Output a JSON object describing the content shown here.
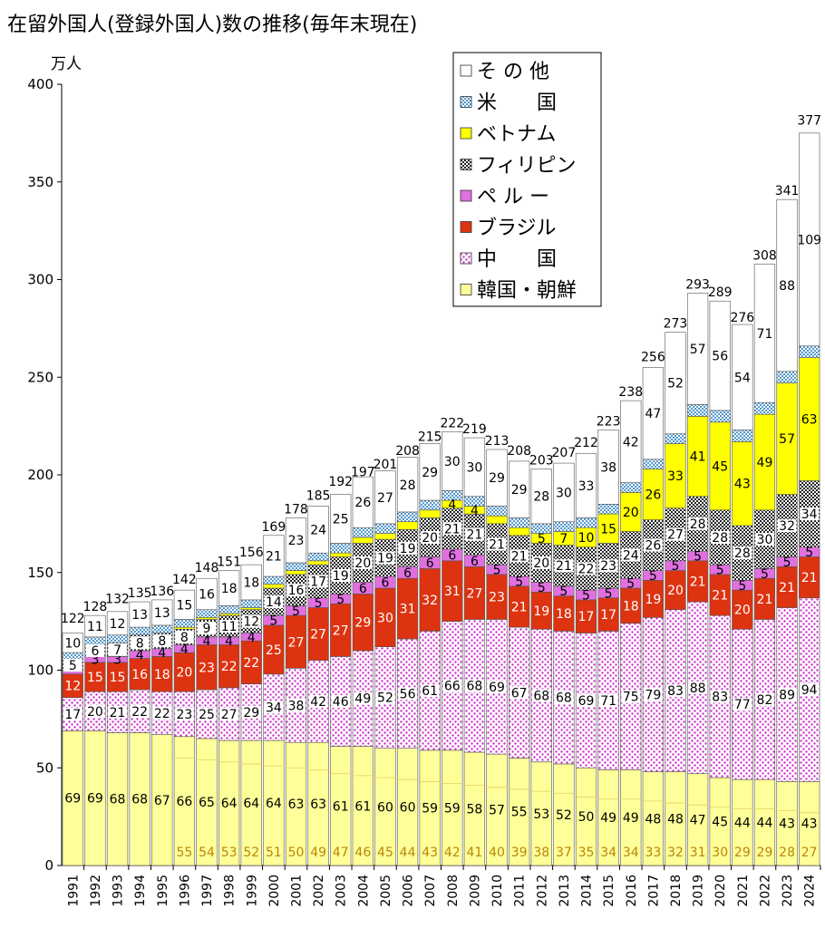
{
  "chart_data": {
    "type": "bar",
    "stacked": true,
    "title": "在留外国人(登録外国人)数の推移(毎年末現在)",
    "unit_label": "万人",
    "ylim": [
      0,
      400
    ],
    "yticks": [
      0,
      50,
      100,
      150,
      200,
      250,
      300,
      350,
      400
    ],
    "grid": false,
    "legend_position": "top-right",
    "categories": [
      "1991",
      "1992",
      "1993",
      "1994",
      "1995",
      "1996",
      "1997",
      "1998",
      "1999",
      "2000",
      "2001",
      "2002",
      "2003",
      "2004",
      "2005",
      "2006",
      "2007",
      "2008",
      "2009",
      "2010",
      "2011",
      "2012",
      "2013",
      "2014",
      "2015",
      "2016",
      "2017",
      "2018",
      "2019",
      "2020",
      "2021",
      "2022",
      "2023",
      "2024"
    ],
    "totals": [
      122,
      128,
      132,
      135,
      136,
      142,
      148,
      151,
      156,
      169,
      178,
      185,
      192,
      197,
      201,
      208,
      215,
      222,
      219,
      213,
      208,
      203,
      207,
      212,
      223,
      238,
      256,
      273,
      293,
      289,
      276,
      308,
      341,
      377
    ],
    "series": [
      {
        "name": "韓国・朝鮮",
        "color": "#ffff99",
        "pattern": "plain",
        "values": [
          69,
          69,
          68,
          68,
          67,
          66,
          65,
          64,
          64,
          64,
          63,
          63,
          61,
          61,
          60,
          60,
          59,
          59,
          58,
          57,
          55,
          53,
          52,
          50,
          49,
          49,
          48,
          48,
          47,
          45,
          44,
          44,
          43,
          43
        ],
        "sub_values": [
          null,
          null,
          null,
          null,
          null,
          55,
          54,
          53,
          52,
          51,
          50,
          49,
          47,
          46,
          45,
          44,
          43,
          42,
          41,
          40,
          39,
          38,
          37,
          35,
          34,
          34,
          33,
          32,
          31,
          30,
          29,
          29,
          28,
          27
        ],
        "sub_labels": [
          "",
          "",
          "",
          "",
          "",
          "55",
          "54",
          "53",
          "52",
          "51",
          "50",
          "49",
          "47",
          "46",
          "45",
          "44",
          "43",
          "42",
          "41",
          "40",
          "39",
          "38",
          "37",
          "35",
          "34",
          "34",
          "33",
          "32",
          "31",
          "30",
          "29",
          "29",
          "28",
          "27"
        ],
        "labels": [
          "69",
          "69",
          "68",
          "68",
          "67",
          "66",
          "65",
          "64",
          "64",
          "64",
          "63",
          "63",
          "61",
          "61",
          "60",
          "60",
          "59",
          "59",
          "58",
          "57",
          "55",
          "53",
          "52",
          "50",
          "49",
          "49",
          "48",
          "48",
          "47",
          "45",
          "44",
          "44",
          "43",
          "43"
        ]
      },
      {
        "name": "中　　国",
        "color": "#cc44cc",
        "pattern": "dots",
        "values": [
          17,
          20,
          21,
          22,
          22,
          23,
          25,
          27,
          29,
          34,
          38,
          42,
          46,
          49,
          52,
          56,
          61,
          66,
          68,
          69,
          67,
          68,
          68,
          69,
          71,
          75,
          79,
          83,
          88,
          83,
          77,
          82,
          89,
          94
        ],
        "labels": [
          "17",
          "20",
          "21",
          "22",
          "22",
          "23",
          "25",
          "27",
          "29",
          "34",
          "38",
          "42",
          "46",
          "49",
          "52",
          "56",
          "61",
          "66",
          "68",
          "69",
          "67",
          "68",
          "68",
          "69",
          "71",
          "75",
          "79",
          "83",
          "88",
          "83",
          "77",
          "82",
          "89",
          "94"
        ]
      },
      {
        "name": "ブラジル",
        "color": "#dd3311",
        "pattern": "plain",
        "values": [
          12,
          15,
          15,
          16,
          18,
          20,
          23,
          22,
          22,
          25,
          27,
          27,
          27,
          29,
          30,
          31,
          32,
          31,
          27,
          23,
          21,
          19,
          18,
          17,
          17,
          18,
          19,
          20,
          21,
          21,
          20,
          21,
          21,
          21
        ],
        "labels": [
          "12",
          "15",
          "15",
          "16",
          "18",
          "20",
          "23",
          "22",
          "22",
          "25",
          "27",
          "27",
          "27",
          "29",
          "30",
          "31",
          "32",
          "31",
          "27",
          "23",
          "21",
          "19",
          "18",
          "17",
          "17",
          "18",
          "19",
          "20",
          "21",
          "21",
          "20",
          "21",
          "21",
          "21"
        ]
      },
      {
        "name": "ペ ル ー",
        "color": "#e070e0",
        "pattern": "plain",
        "values": [
          2,
          3,
          3,
          4,
          4,
          4,
          4,
          4,
          4,
          5,
          5,
          5,
          5,
          6,
          6,
          6,
          6,
          6,
          6,
          5,
          5,
          5,
          5,
          5,
          5,
          5,
          5,
          5,
          5,
          5,
          5,
          5,
          5,
          5
        ],
        "labels": [
          "",
          "3",
          "3",
          "4",
          "4",
          "4",
          "4",
          "4",
          "4",
          "5",
          "5",
          "5",
          "5",
          "6",
          "6",
          "6",
          "6",
          "6",
          "6",
          "5",
          "5",
          "5",
          "5",
          "5",
          "5",
          "5",
          "5",
          "5",
          "5",
          "5",
          "5",
          "5",
          "5",
          "5"
        ]
      },
      {
        "name": "フィリピン",
        "color": "#222222",
        "pattern": "checker",
        "values": [
          5,
          6,
          7,
          8,
          8,
          8,
          9,
          11,
          12,
          14,
          16,
          17,
          19,
          20,
          19,
          19,
          20,
          21,
          21,
          21,
          21,
          20,
          21,
          22,
          23,
          24,
          26,
          27,
          28,
          28,
          28,
          30,
          32,
          34
        ],
        "labels": [
          "5",
          "6",
          "7",
          "8",
          "8",
          "8",
          "9",
          "11",
          "12",
          "14",
          "16",
          "17",
          "19",
          "20",
          "19",
          "19",
          "20",
          "21",
          "21",
          "21",
          "21",
          "20",
          "21",
          "22",
          "23",
          "24",
          "26",
          "27",
          "28",
          "28",
          "28",
          "30",
          "32",
          "34"
        ]
      },
      {
        "name": "ベトナム",
        "color": "#ffff00",
        "pattern": "plain",
        "values": [
          0,
          0,
          0,
          0,
          0,
          1,
          1,
          1,
          1,
          2,
          2,
          2,
          2,
          3,
          3,
          4,
          4,
          4,
          4,
          4,
          4,
          5,
          7,
          10,
          15,
          20,
          26,
          33,
          41,
          45,
          43,
          49,
          57,
          63
        ],
        "labels": [
          "",
          "",
          "",
          "",
          "",
          "",
          "",
          "",
          "",
          "",
          "",
          "",
          "",
          "",
          "",
          "",
          "",
          "4",
          "4",
          "",
          "",
          "5",
          "7",
          "10",
          "15",
          "20",
          "26",
          "33",
          "41",
          "45",
          "43",
          "49",
          "57",
          "63"
        ]
      },
      {
        "name": "米　　国",
        "color": "#99ccee",
        "pattern": "hatch",
        "values": [
          4,
          4,
          4,
          4,
          4,
          4,
          4,
          4,
          4,
          4,
          4,
          4,
          5,
          5,
          5,
          5,
          5,
          5,
          5,
          5,
          5,
          5,
          5,
          5,
          5,
          5,
          5,
          5,
          6,
          6,
          6,
          6,
          6,
          6
        ],
        "labels": [
          "",
          "",
          "",
          "",
          "",
          "",
          "",
          "",
          "",
          "",
          "",
          "",
          "",
          "",
          "",
          "",
          "",
          "",
          "",
          "",
          "",
          "",
          "",
          "",
          "",
          "",
          "",
          "",
          "",
          "",
          "",
          "",
          "",
          ""
        ]
      },
      {
        "name": "そ の 他",
        "color": "#ffffff",
        "pattern": "plain",
        "values": [
          10,
          11,
          12,
          13,
          13,
          15,
          16,
          18,
          18,
          21,
          23,
          24,
          25,
          26,
          27,
          28,
          29,
          30,
          30,
          29,
          29,
          28,
          30,
          33,
          38,
          42,
          47,
          52,
          57,
          56,
          54,
          71,
          88,
          109
        ],
        "labels": [
          "10",
          "11",
          "12",
          "13",
          "13",
          "15",
          "16",
          "18",
          "18",
          "21",
          "23",
          "24",
          "25",
          "26",
          "27",
          "28",
          "29",
          "30",
          "30",
          "29",
          "29",
          "28",
          "30",
          "33",
          "38",
          "42",
          "47",
          "52",
          "57",
          "56",
          "54",
          "71",
          "88",
          "109"
        ]
      }
    ]
  }
}
